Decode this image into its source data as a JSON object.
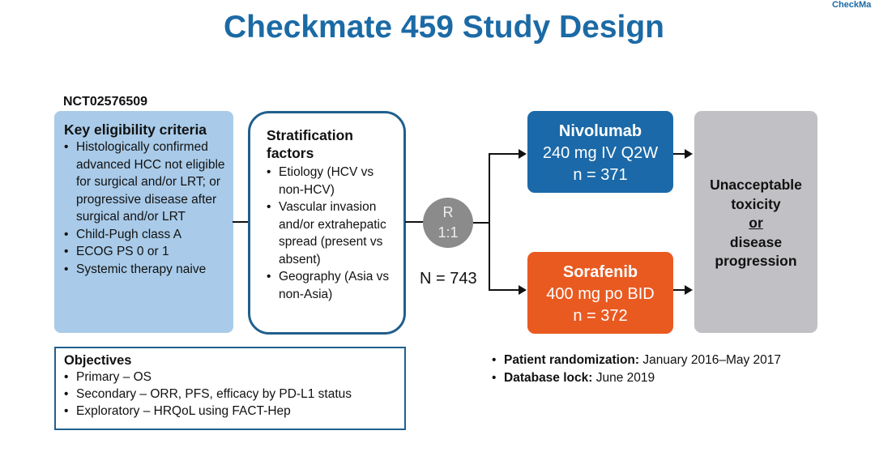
{
  "header": {
    "title": "Checkmate 459 Study Design",
    "brand_fragment": "CheckMa"
  },
  "trial_id": "NCT02576509",
  "eligibility": {
    "title": "Key eligibility criteria",
    "items": [
      "Histologically confirmed advanced HCC not eligible for surgical and/or LRT; or progressive disease after surgical and/or LRT",
      "Child-Pugh class A",
      "ECOG PS 0 or 1",
      "Systemic therapy naive"
    ]
  },
  "stratification": {
    "title": "Stratification factors",
    "items": [
      "Etiology (HCV vs non-HCV)",
      "Vascular invasion and/or extrahepatic spread (present vs absent)",
      "Geography (Asia vs non-Asia)"
    ]
  },
  "randomization": {
    "label": "R",
    "ratio": "1:1",
    "total": "N = 743"
  },
  "arms": [
    {
      "name": "Nivolumab",
      "dose": "240 mg IV Q2W",
      "n": "n = 371",
      "color": "#1b69a8"
    },
    {
      "name": "Sorafenib",
      "dose": "400 mg po BID",
      "n": "n = 372",
      "color": "#e95a21"
    }
  ],
  "endpoint": {
    "line1": "Unacceptable toxicity",
    "or": "or",
    "line2": "disease progression"
  },
  "objectives": {
    "title": "Objectives",
    "items": [
      "Primary – OS",
      "Secondary – ORR, PFS, efficacy by PD-L1 status",
      "Exploratory – HRQoL using FACT-Hep"
    ]
  },
  "timeline": [
    {
      "label": "Patient randomization:",
      "value": "January 2016–May 2017"
    },
    {
      "label": "Database lock:",
      "value": "June 2019"
    }
  ]
}
